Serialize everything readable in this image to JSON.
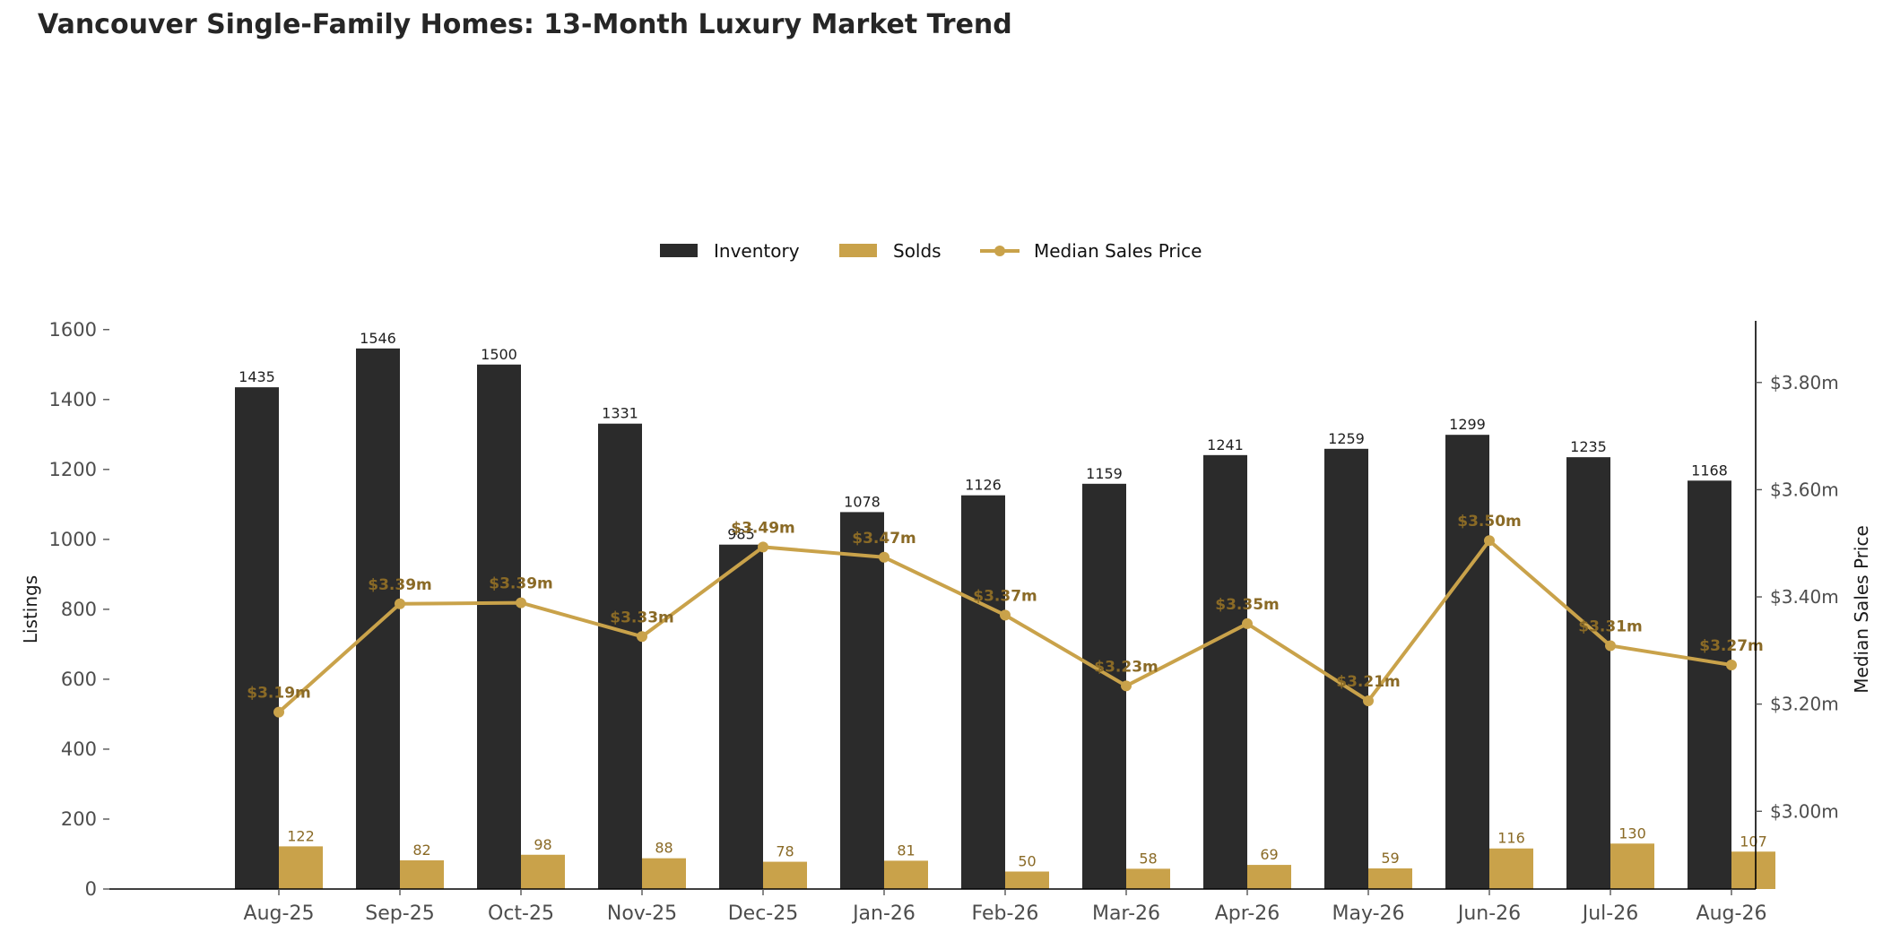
{
  "chart_data": {
    "type": "bar",
    "title": "Vancouver Single-Family Homes: 13-Month Luxury Market Trend",
    "categories": [
      "Aug-25",
      "Sep-25",
      "Oct-25",
      "Nov-25",
      "Dec-25",
      "Jan-26",
      "Feb-26",
      "Mar-26",
      "Apr-26",
      "May-26",
      "Jun-26",
      "Jul-26",
      "Aug-26"
    ],
    "series": [
      {
        "name": "Inventory",
        "kind": "bar",
        "axis": "left",
        "color": "#2b2b2b",
        "values": [
          1435,
          1546,
          1500,
          1331,
          985,
          1078,
          1126,
          1159,
          1241,
          1259,
          1299,
          1235,
          1168
        ],
        "labels": [
          "1435",
          "1546",
          "1500",
          "1331",
          "985",
          "1078",
          "1126",
          "1159",
          "1241",
          "1259",
          "1299",
          "1235",
          "1168"
        ]
      },
      {
        "name": "Solds",
        "kind": "bar",
        "axis": "left",
        "color": "#c9a24a",
        "values": [
          122,
          82,
          98,
          88,
          78,
          81,
          50,
          58,
          69,
          59,
          116,
          130,
          107
        ],
        "labels": [
          "122",
          "82",
          "98",
          "88",
          "78",
          "81",
          "50",
          "58",
          "69",
          "59",
          "116",
          "130",
          "107"
        ]
      },
      {
        "name": "Median Sales Price",
        "kind": "line",
        "axis": "right",
        "color": "#c9a24a",
        "values": [
          3.185,
          3.387,
          3.389,
          3.326,
          3.493,
          3.474,
          3.366,
          3.234,
          3.35,
          3.206,
          3.505,
          3.309,
          3.273
        ],
        "labels": [
          "$3.19m",
          "$3.39m",
          "$3.39m",
          "$3.33m",
          "$3.49m",
          "$3.47m",
          "$3.37m",
          "$3.23m",
          "$3.35m",
          "$3.21m",
          "$3.50m",
          "$3.31m",
          "$3.27m"
        ]
      }
    ],
    "ylabel": "Listings",
    "ylim": [
      0,
      1625
    ],
    "yticks": [
      0,
      200,
      400,
      600,
      800,
      1000,
      1200,
      1400,
      1600
    ],
    "ytick_labels": [
      "0",
      "200",
      "400",
      "600",
      "800",
      "1000",
      "1200",
      "1400",
      "1600"
    ],
    "y2label": "Median Sales Price",
    "y2lim": [
      2.855,
      3.915
    ],
    "y2ticks": [
      3.0,
      3.2,
      3.4,
      3.6,
      3.8
    ],
    "y2tick_labels": [
      "$3.00m",
      "$3.20m",
      "$3.40m",
      "$3.60m",
      "$3.80m"
    ],
    "grid": false,
    "legend": "top-center",
    "colors": {
      "inventory": "#2b2b2b",
      "solds": "#c9a24a",
      "price_line": "#c9a24a",
      "price_label": "#8a6a26",
      "solds_label": "#8a6a26"
    }
  }
}
